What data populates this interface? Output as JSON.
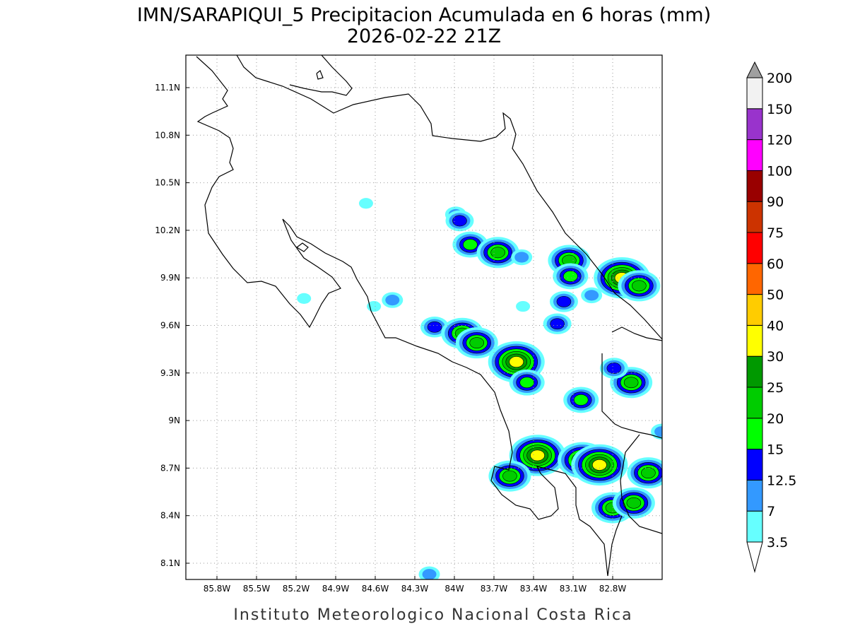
{
  "header": {
    "title": "IMN/SARAPIQUI_5 Precipitacion Acumulada en 6 horas (mm)",
    "subtitle": "2026-02-22 21Z"
  },
  "footer": {
    "credit": "Instituto Meteorologico Nacional Costa Rica"
  },
  "chart_data": {
    "type": "map",
    "title": "IMN/SARAPIQUI_5 Precipitacion Acumulada en 6 horas (mm)",
    "subtitle": "2026-02-22 21Z",
    "lon_range": [
      -86.04,
      -82.42
    ],
    "lat_range": [
      8.0,
      11.3
    ],
    "grid": true,
    "lon_ticks": [
      {
        "value": -85.8,
        "label": "85.8W"
      },
      {
        "value": -85.5,
        "label": "85.5W"
      },
      {
        "value": -85.2,
        "label": "85.2W"
      },
      {
        "value": -84.9,
        "label": "84.9W"
      },
      {
        "value": -84.6,
        "label": "84.6W"
      },
      {
        "value": -84.3,
        "label": "84.3W"
      },
      {
        "value": -84.0,
        "label": "84W"
      },
      {
        "value": -83.7,
        "label": "83.7W"
      },
      {
        "value": -83.4,
        "label": "83.4W"
      },
      {
        "value": -83.1,
        "label": "83.1W"
      },
      {
        "value": -82.8,
        "label": "82.8W"
      }
    ],
    "lat_ticks": [
      {
        "value": 11.1,
        "label": "11.1N"
      },
      {
        "value": 10.8,
        "label": "10.8N"
      },
      {
        "value": 10.5,
        "label": "10.5N"
      },
      {
        "value": 10.2,
        "label": "10.2N"
      },
      {
        "value": 9.9,
        "label": "9.9N"
      },
      {
        "value": 9.6,
        "label": "9.6N"
      },
      {
        "value": 9.3,
        "label": "9.3N"
      },
      {
        "value": 9.0,
        "label": "9N"
      },
      {
        "value": 8.7,
        "label": "8.7N"
      },
      {
        "value": 8.4,
        "label": "8.4N"
      },
      {
        "value": 8.1,
        "label": "8.1N"
      }
    ],
    "legend": {
      "placement": "right",
      "levels": [
        "3.5",
        "7",
        "12.5",
        "15",
        "20",
        "25",
        "30",
        "40",
        "50",
        "60",
        "75",
        "90",
        "100",
        "120",
        "150",
        "200"
      ],
      "colors": [
        "#66ffff",
        "#3399ff",
        "#0000ff",
        "#00ff00",
        "#00cc00",
        "#009900",
        "#ffff00",
        "#ffcc00",
        "#ff6600",
        "#ff0000",
        "#cc3300",
        "#990000",
        "#ff00ff",
        "#9933cc",
        "#f2f2f2"
      ],
      "over_color": "#a0a0a0",
      "under_color": "#ffffff"
    },
    "precip_cells": [
      {
        "lon": -84.67,
        "lat": 10.37,
        "max": 3.5
      },
      {
        "lon": -83.99,
        "lat": 10.3,
        "max": 7
      },
      {
        "lon": -83.96,
        "lat": 10.26,
        "max": 12.5
      },
      {
        "lon": -83.88,
        "lat": 10.11,
        "max": 15
      },
      {
        "lon": -83.67,
        "lat": 10.06,
        "max": 20
      },
      {
        "lon": -83.49,
        "lat": 10.03,
        "max": 7
      },
      {
        "lon": -83.13,
        "lat": 10.01,
        "max": 20
      },
      {
        "lon": -83.12,
        "lat": 9.91,
        "max": 15
      },
      {
        "lon": -82.73,
        "lat": 9.9,
        "max": 30
      },
      {
        "lon": -82.6,
        "lat": 9.85,
        "max": 20
      },
      {
        "lon": -82.96,
        "lat": 9.79,
        "max": 7
      },
      {
        "lon": -83.48,
        "lat": 9.72,
        "max": 3.5
      },
      {
        "lon": -84.15,
        "lat": 9.59,
        "max": 12.5
      },
      {
        "lon": -83.94,
        "lat": 9.55,
        "max": 20
      },
      {
        "lon": -83.83,
        "lat": 9.49,
        "max": 20
      },
      {
        "lon": -83.53,
        "lat": 9.37,
        "max": 30
      },
      {
        "lon": -83.45,
        "lat": 9.24,
        "max": 15
      },
      {
        "lon": -83.04,
        "lat": 9.13,
        "max": 15
      },
      {
        "lon": -82.66,
        "lat": 9.24,
        "max": 20
      },
      {
        "lon": -82.79,
        "lat": 9.33,
        "max": 12.5
      },
      {
        "lon": -82.43,
        "lat": 8.93,
        "max": 7
      },
      {
        "lon": -83.37,
        "lat": 8.78,
        "max": 30
      },
      {
        "lon": -83.03,
        "lat": 8.75,
        "max": 25
      },
      {
        "lon": -82.9,
        "lat": 8.72,
        "max": 30
      },
      {
        "lon": -83.58,
        "lat": 8.65,
        "max": 20
      },
      {
        "lon": -82.53,
        "lat": 8.67,
        "max": 20
      },
      {
        "lon": -82.8,
        "lat": 8.45,
        "max": 20
      },
      {
        "lon": -82.64,
        "lat": 8.48,
        "max": 20
      },
      {
        "lon": -84.61,
        "lat": 9.72,
        "max": 3.5
      },
      {
        "lon": -84.47,
        "lat": 9.76,
        "max": 7
      },
      {
        "lon": -85.14,
        "lat": 9.77,
        "max": 3.5
      },
      {
        "lon": -83.22,
        "lat": 9.61,
        "max": 12.5
      },
      {
        "lon": -83.17,
        "lat": 9.75,
        "max": 12.5
      },
      {
        "lon": -84.19,
        "lat": 8.03,
        "max": 7
      }
    ]
  }
}
